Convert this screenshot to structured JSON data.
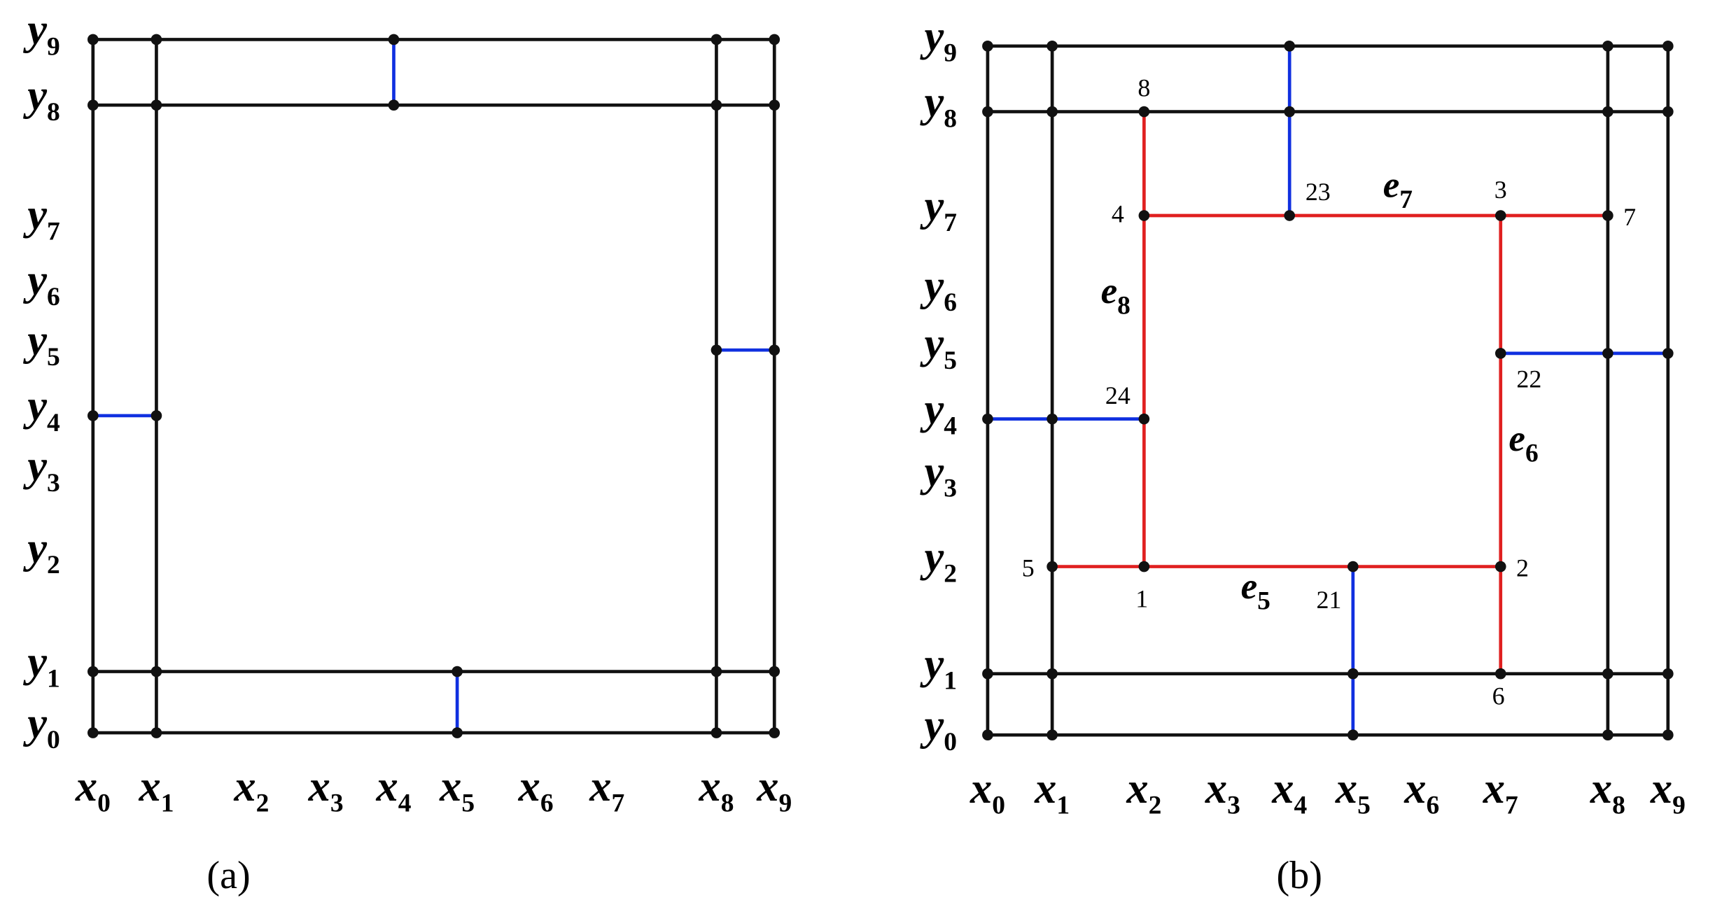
{
  "panel_a": {
    "caption": "(a)",
    "x_labels": [
      {
        "var": "x",
        "sub": "0"
      },
      {
        "var": "x",
        "sub": "1"
      },
      {
        "var": "x",
        "sub": "2"
      },
      {
        "var": "x",
        "sub": "3"
      },
      {
        "var": "x",
        "sub": "4"
      },
      {
        "var": "x",
        "sub": "5"
      },
      {
        "var": "x",
        "sub": "6"
      },
      {
        "var": "x",
        "sub": "7"
      },
      {
        "var": "x",
        "sub": "8"
      },
      {
        "var": "x",
        "sub": "9"
      }
    ],
    "y_labels": [
      {
        "var": "y",
        "sub": "0"
      },
      {
        "var": "y",
        "sub": "1"
      },
      {
        "var": "y",
        "sub": "2"
      },
      {
        "var": "y",
        "sub": "3"
      },
      {
        "var": "y",
        "sub": "4"
      },
      {
        "var": "y",
        "sub": "5"
      },
      {
        "var": "y",
        "sub": "6"
      },
      {
        "var": "y",
        "sub": "7"
      },
      {
        "var": "y",
        "sub": "8"
      },
      {
        "var": "y",
        "sub": "9"
      }
    ]
  },
  "panel_b": {
    "caption": "(b)",
    "x_labels": [
      {
        "var": "x",
        "sub": "0"
      },
      {
        "var": "x",
        "sub": "1"
      },
      {
        "var": "x",
        "sub": "2"
      },
      {
        "var": "x",
        "sub": "3"
      },
      {
        "var": "x",
        "sub": "4"
      },
      {
        "var": "x",
        "sub": "5"
      },
      {
        "var": "x",
        "sub": "6"
      },
      {
        "var": "x",
        "sub": "7"
      },
      {
        "var": "x",
        "sub": "8"
      },
      {
        "var": "x",
        "sub": "9"
      }
    ],
    "y_labels": [
      {
        "var": "y",
        "sub": "0"
      },
      {
        "var": "y",
        "sub": "1"
      },
      {
        "var": "y",
        "sub": "2"
      },
      {
        "var": "y",
        "sub": "3"
      },
      {
        "var": "y",
        "sub": "4"
      },
      {
        "var": "y",
        "sub": "5"
      },
      {
        "var": "y",
        "sub": "6"
      },
      {
        "var": "y",
        "sub": "7"
      },
      {
        "var": "y",
        "sub": "8"
      },
      {
        "var": "y",
        "sub": "9"
      }
    ],
    "node_labels": [
      "8",
      "4",
      "23",
      "3",
      "7",
      "24",
      "22",
      "5",
      "1",
      "21",
      "2",
      "6"
    ],
    "edge_labels": [
      {
        "var": "e",
        "sub": "7"
      },
      {
        "var": "e",
        "sub": "8"
      },
      {
        "var": "e",
        "sub": "6"
      },
      {
        "var": "e",
        "sub": "5"
      }
    ]
  }
}
